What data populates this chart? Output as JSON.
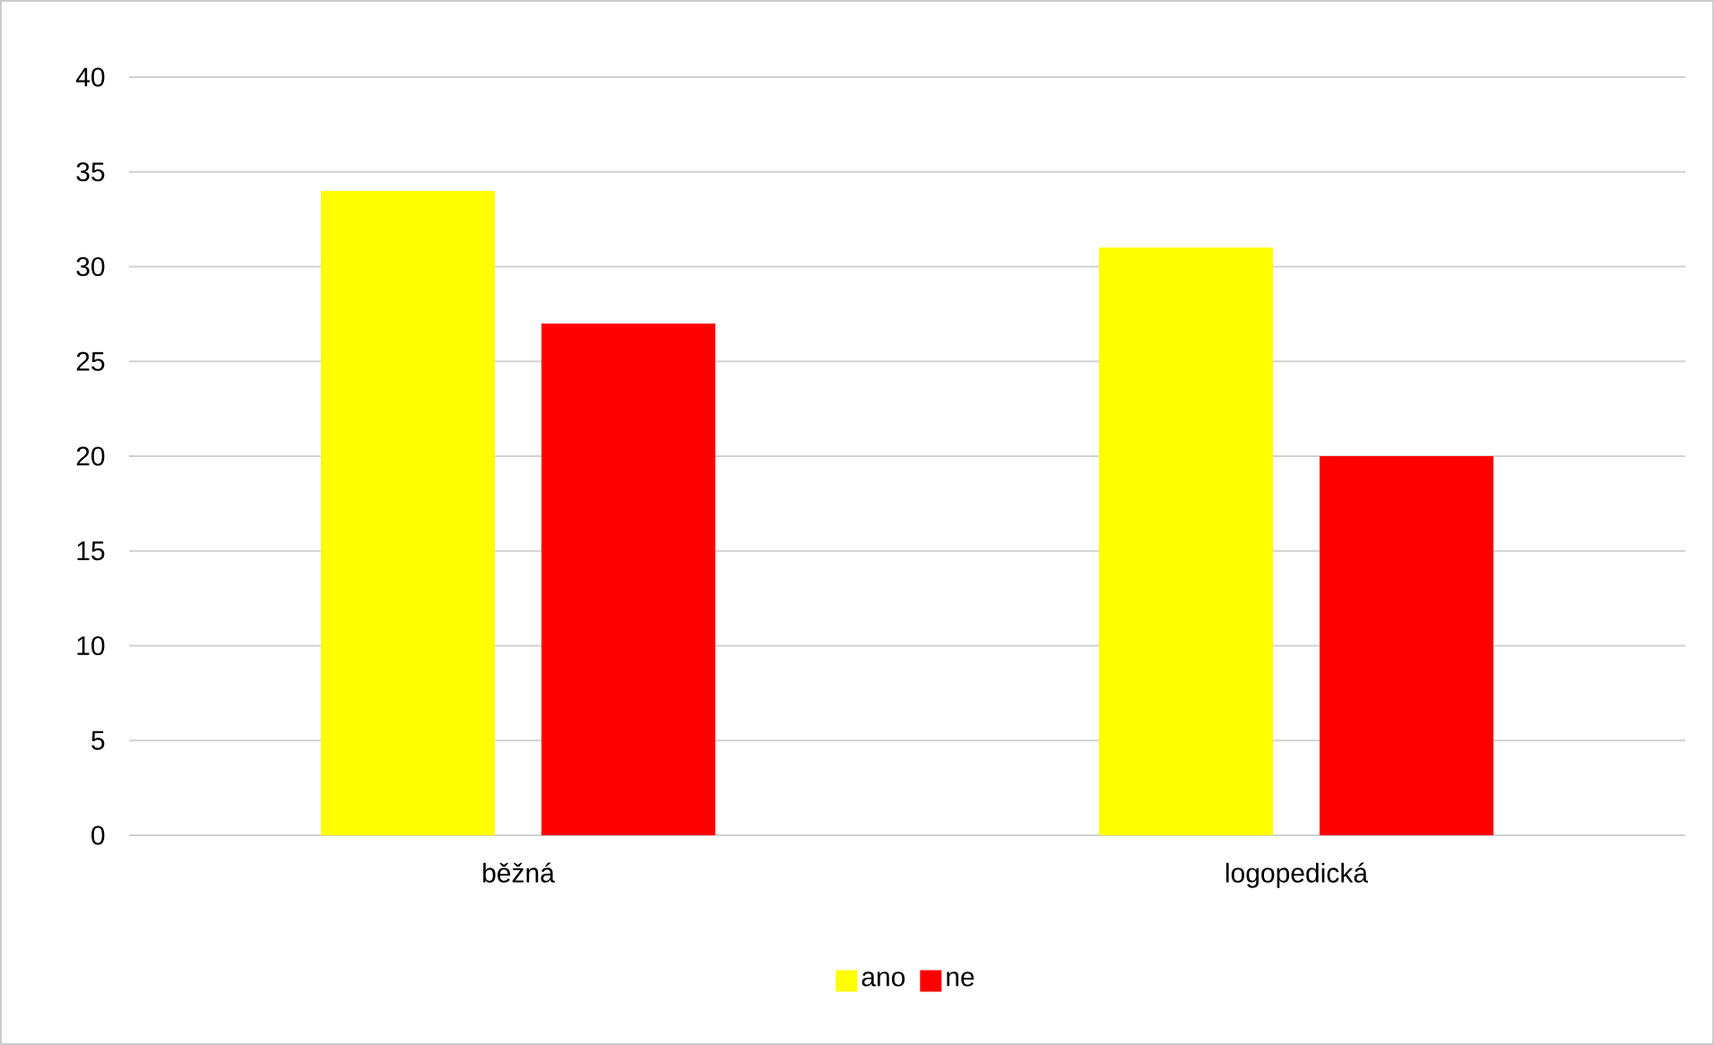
{
  "chart_data": {
    "type": "bar",
    "categories": [
      "běžná",
      "logopedická"
    ],
    "series": [
      {
        "name": "ano",
        "color": "#ffff00",
        "values": [
          34,
          31
        ]
      },
      {
        "name": "ne",
        "color": "#ff0000",
        "values": [
          27,
          20
        ]
      }
    ],
    "ylim": [
      0,
      40
    ],
    "yticks": [
      0,
      5,
      10,
      15,
      20,
      25,
      30,
      35,
      40
    ],
    "grid": "y",
    "legend": "bottom"
  }
}
